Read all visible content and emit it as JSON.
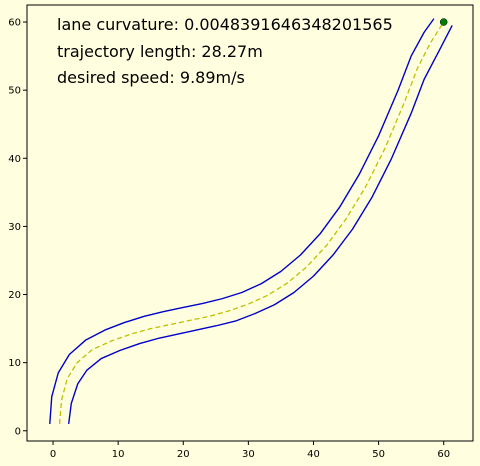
{
  "chart_data": {
    "type": "line",
    "annotations": {
      "curvature": "lane curvature: 0.004839164634820156​5",
      "length": "trajectory length: 28.27m",
      "speed": "desired speed: 9.89m/s"
    },
    "xlim": [
      -4,
      64.5
    ],
    "ylim": [
      -1.5,
      62.5
    ],
    "x_ticks": [
      0,
      10,
      20,
      30,
      40,
      50,
      60
    ],
    "y_ticks": [
      0,
      10,
      20,
      30,
      40,
      50,
      60
    ],
    "grid": false,
    "colors": {
      "background": "#ffffe0",
      "plot_area": "#ffffe0",
      "lane_boundary": "#0000cc",
      "centerline": "#bfbf00",
      "marker": "#008000"
    },
    "series": [
      {
        "style": "solid",
        "x": [
          -0.5,
          -0.2,
          0.8,
          2.5,
          5,
          8,
          11,
          14,
          17,
          20,
          23,
          26,
          29,
          32,
          35,
          38,
          41,
          44,
          47,
          50,
          53,
          55,
          57,
          58.5
        ],
        "y": [
          1,
          5,
          8.5,
          11.2,
          13.3,
          14.8,
          15.9,
          16.8,
          17.5,
          18.1,
          18.7,
          19.4,
          20.3,
          21.6,
          23.4,
          25.8,
          28.9,
          32.8,
          37.6,
          43.3,
          50,
          55,
          58.5,
          60.5
        ]
      },
      {
        "style": "dashed",
        "x": [
          1,
          1.3,
          2.2,
          3.7,
          6,
          9,
          12,
          15,
          18,
          21,
          24,
          27,
          30,
          33,
          36,
          39,
          42,
          45,
          48,
          51,
          54,
          56,
          58,
          60
        ],
        "y": [
          1,
          4.5,
          7.7,
          10,
          11.9,
          13.2,
          14.2,
          15,
          15.6,
          16.2,
          16.8,
          17.6,
          18.6,
          19.9,
          21.7,
          24.1,
          27.2,
          31.1,
          35.8,
          41.5,
          48.3,
          53.3,
          57,
          60
        ]
      },
      {
        "style": "solid",
        "x": [
          2.4,
          2.8,
          3.8,
          5.2,
          7.4,
          10.3,
          13.3,
          16.3,
          19.2,
          22.1,
          25,
          28,
          31,
          34,
          37,
          40,
          43,
          46,
          49,
          52,
          55,
          57,
          59.3,
          61.3
        ],
        "y": [
          1,
          4,
          6.9,
          8.9,
          10.6,
          11.8,
          12.8,
          13.6,
          14.2,
          14.8,
          15.4,
          16.1,
          17.2,
          18.5,
          20.3,
          22.7,
          25.8,
          29.6,
          34.3,
          40,
          46.6,
          51.6,
          55.8,
          59.5
        ]
      }
    ],
    "marker": {
      "x": 60,
      "y": 60
    }
  }
}
